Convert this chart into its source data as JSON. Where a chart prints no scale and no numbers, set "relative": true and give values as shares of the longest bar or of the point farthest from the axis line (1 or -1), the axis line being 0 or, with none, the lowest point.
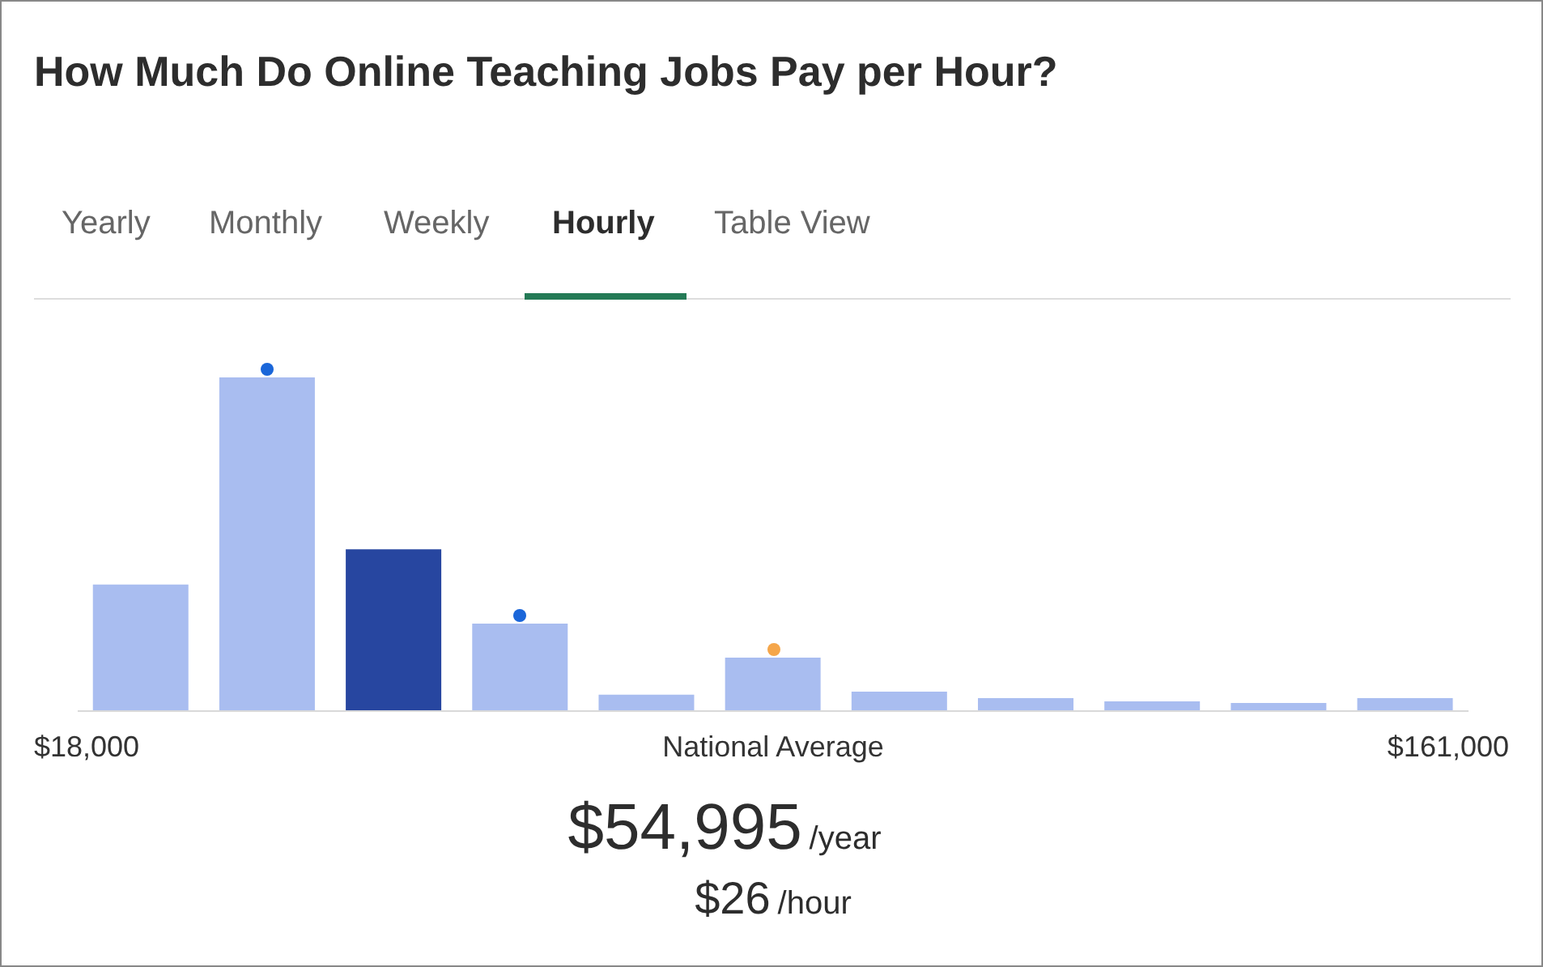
{
  "chart_data": {
    "type": "bar",
    "title": "How Much Do Online Teaching Jobs Pay per Hour?",
    "categories": [
      null,
      null,
      null,
      null,
      null,
      null,
      null,
      null,
      null,
      null,
      null
    ],
    "values": [
      0.379,
      1,
      0.485,
      0.262,
      0.049,
      0.16,
      0.058,
      0.039,
      0.029,
      0.024,
      0.039
    ],
    "colors": [
      "#a9bdf0",
      "#a9bdf0",
      "#2746a0",
      "#a9bdf0",
      "#a9bdf0",
      "#a9bdf0",
      "#a9bdf0",
      "#a9bdf0",
      "#a9bdf0",
      "#a9bdf0",
      "#a9bdf0"
    ],
    "relative": true,
    "annotations": [
      "Yearly",
      "Monthly",
      "Weekly",
      "Hourly",
      "Table View",
      "National Average",
      "$54,995",
      "/year",
      "$26",
      "/hour",
      "$18,000",
      "$161,000"
    ]
  }
}
